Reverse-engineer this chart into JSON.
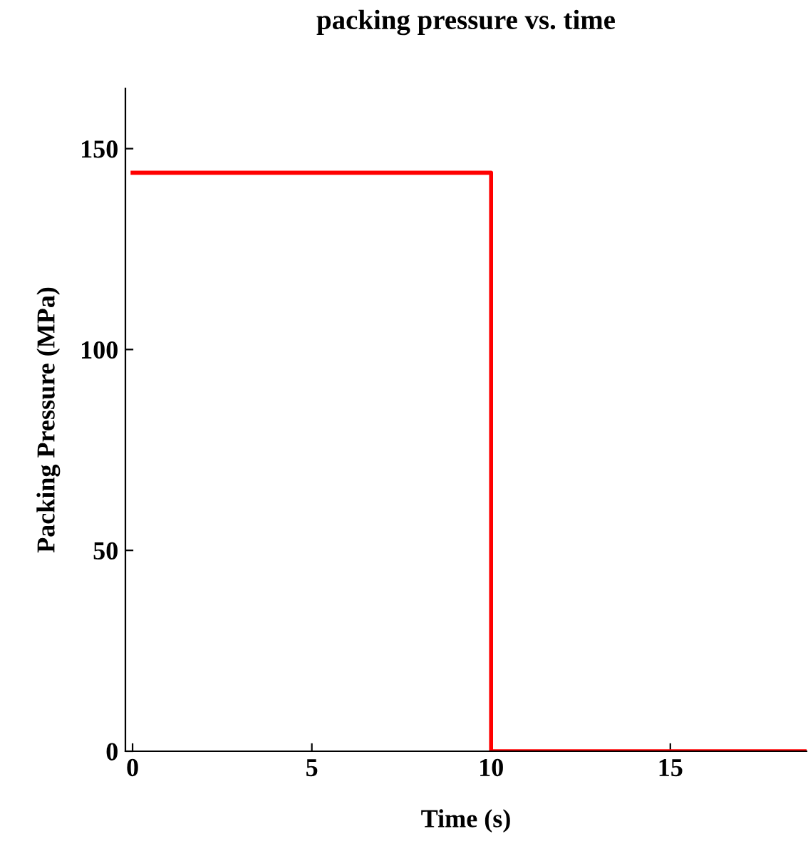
{
  "chart_data": {
    "type": "step",
    "title": "packing pressure vs. time",
    "xlabel": "Time (s)",
    "ylabel": "Packing Pressure (MPa)",
    "x": [
      0,
      10,
      18.8
    ],
    "series": [
      {
        "color": "#ff0000",
        "values": [
          144,
          0,
          0
        ]
      }
    ],
    "xlim": [
      -0.2,
      18.8
    ],
    "xticks": [
      0,
      5,
      10,
      15
    ],
    "ylim": [
      0,
      165
    ],
    "yticks": [
      0,
      50,
      100,
      150
    ],
    "grid": false,
    "legend": false
  }
}
